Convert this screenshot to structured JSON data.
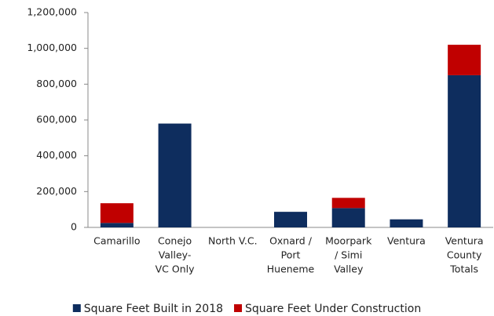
{
  "chart_data": {
    "type": "stacked-bar",
    "categories": [
      [
        "Camarillo"
      ],
      [
        "Conejo",
        "Valley-",
        "VC Only"
      ],
      [
        "North V.C."
      ],
      [
        "Oxnard /",
        "Port",
        "Hueneme"
      ],
      [
        "Moorpark",
        "/ Simi",
        "Valley"
      ],
      [
        "Ventura"
      ],
      [
        "Ventura",
        "County",
        "Totals"
      ]
    ],
    "series": [
      {
        "name": "Square Feet Built in 2018",
        "color": "#0e2d5e",
        "values": [
          25000,
          580000,
          0,
          87000,
          108000,
          45000,
          850000
        ]
      },
      {
        "name": "Square Feet Under Construction",
        "color": "#c00000",
        "values": [
          110000,
          0,
          0,
          0,
          57000,
          0,
          170000
        ]
      }
    ],
    "ylim": [
      0,
      1200000
    ],
    "yticks": [
      0,
      {
        "value": 200000,
        "label": "200,000"
      },
      {
        "value": 400000,
        "label": "400,000"
      },
      {
        "value": 600000,
        "label": "600,000"
      },
      {
        "value": 800000,
        "label": "800,000"
      },
      {
        "value": 1000000,
        "label": "1,000,000"
      },
      {
        "value": 1200000,
        "label": "1,200,000"
      }
    ],
    "grid": false,
    "legend": "bottom"
  }
}
